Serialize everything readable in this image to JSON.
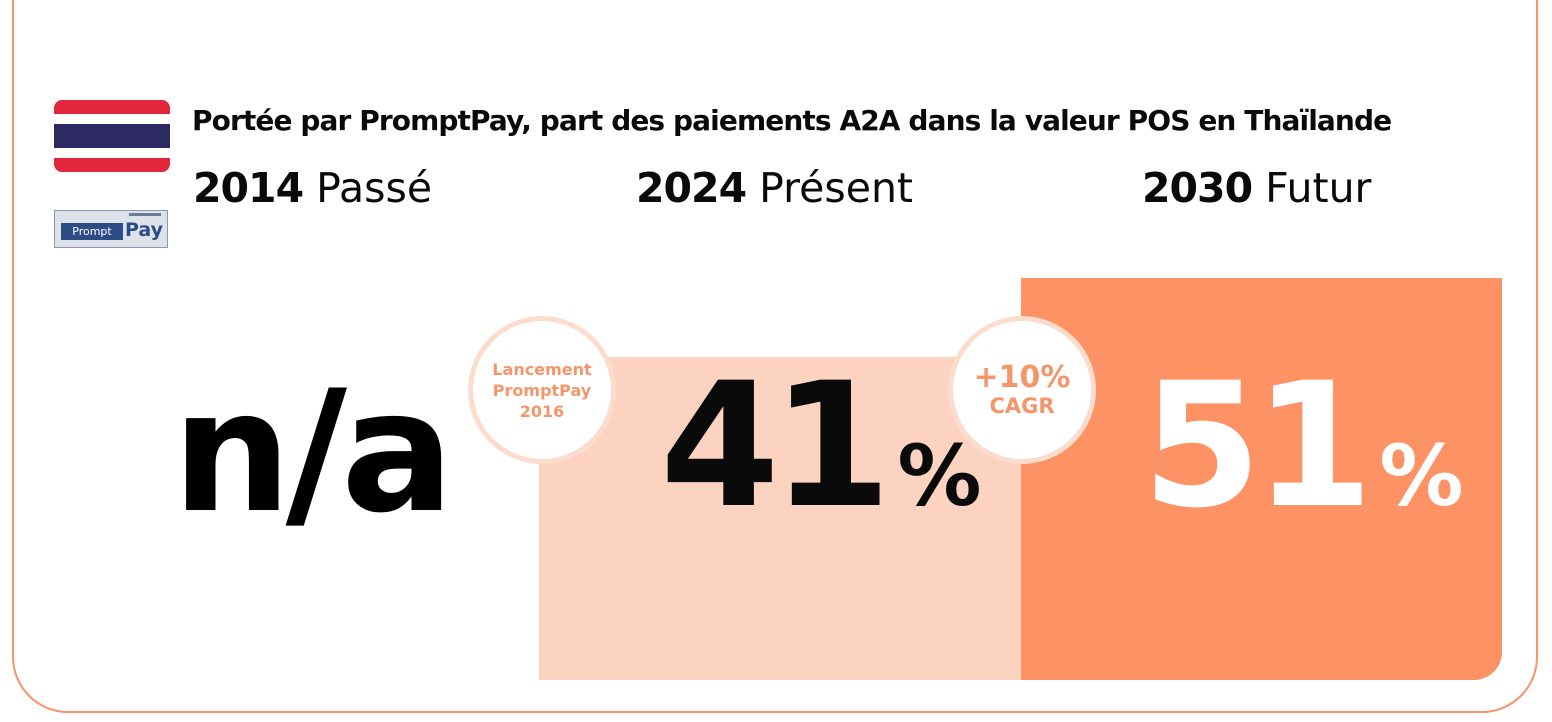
{
  "title": "Portée par PromptPay, part des paiements A2A dans la valeur POS en Thaïlande",
  "logo": {
    "name": "promptpay-logo",
    "text_left": "Prompt",
    "text_right": "Pay"
  },
  "flag": {
    "colors": [
      "#e0283a",
      "#ffffff",
      "#2d2a63",
      "#ffffff",
      "#e0283a"
    ]
  },
  "periods": [
    {
      "year": "2014",
      "label": "Passé",
      "value_text": "n/a",
      "pct": ""
    },
    {
      "year": "2024",
      "label": "Présent",
      "value_text": "41",
      "pct": "%"
    },
    {
      "year": "2030",
      "label": "Futur",
      "value_text": "51",
      "pct": "%"
    }
  ],
  "annotations": {
    "launch": {
      "line1": "Lancement",
      "line2": "PromptPay",
      "line3": "2016"
    },
    "growth": {
      "line1": "+10%",
      "line2": "CAGR"
    }
  },
  "colors": {
    "accent": "#f4956c",
    "present_bar": "#fcd3c1",
    "future_bar": "#fd9264",
    "text_dark": "#0a0a0a"
  },
  "chart_data": {
    "type": "bar",
    "title": "Portée par PromptPay, part des paiements A2A dans la valeur POS en Thaïlande",
    "categories": [
      "2014 Passé",
      "2024 Présent",
      "2030 Futur"
    ],
    "values": [
      null,
      41,
      51
    ],
    "value_labels": [
      "n/a",
      "41%",
      "51%"
    ],
    "unit": "%",
    "annotations": [
      "Lancement PromptPay 2016",
      "+10% CAGR"
    ],
    "grid": false,
    "legend": "none"
  }
}
